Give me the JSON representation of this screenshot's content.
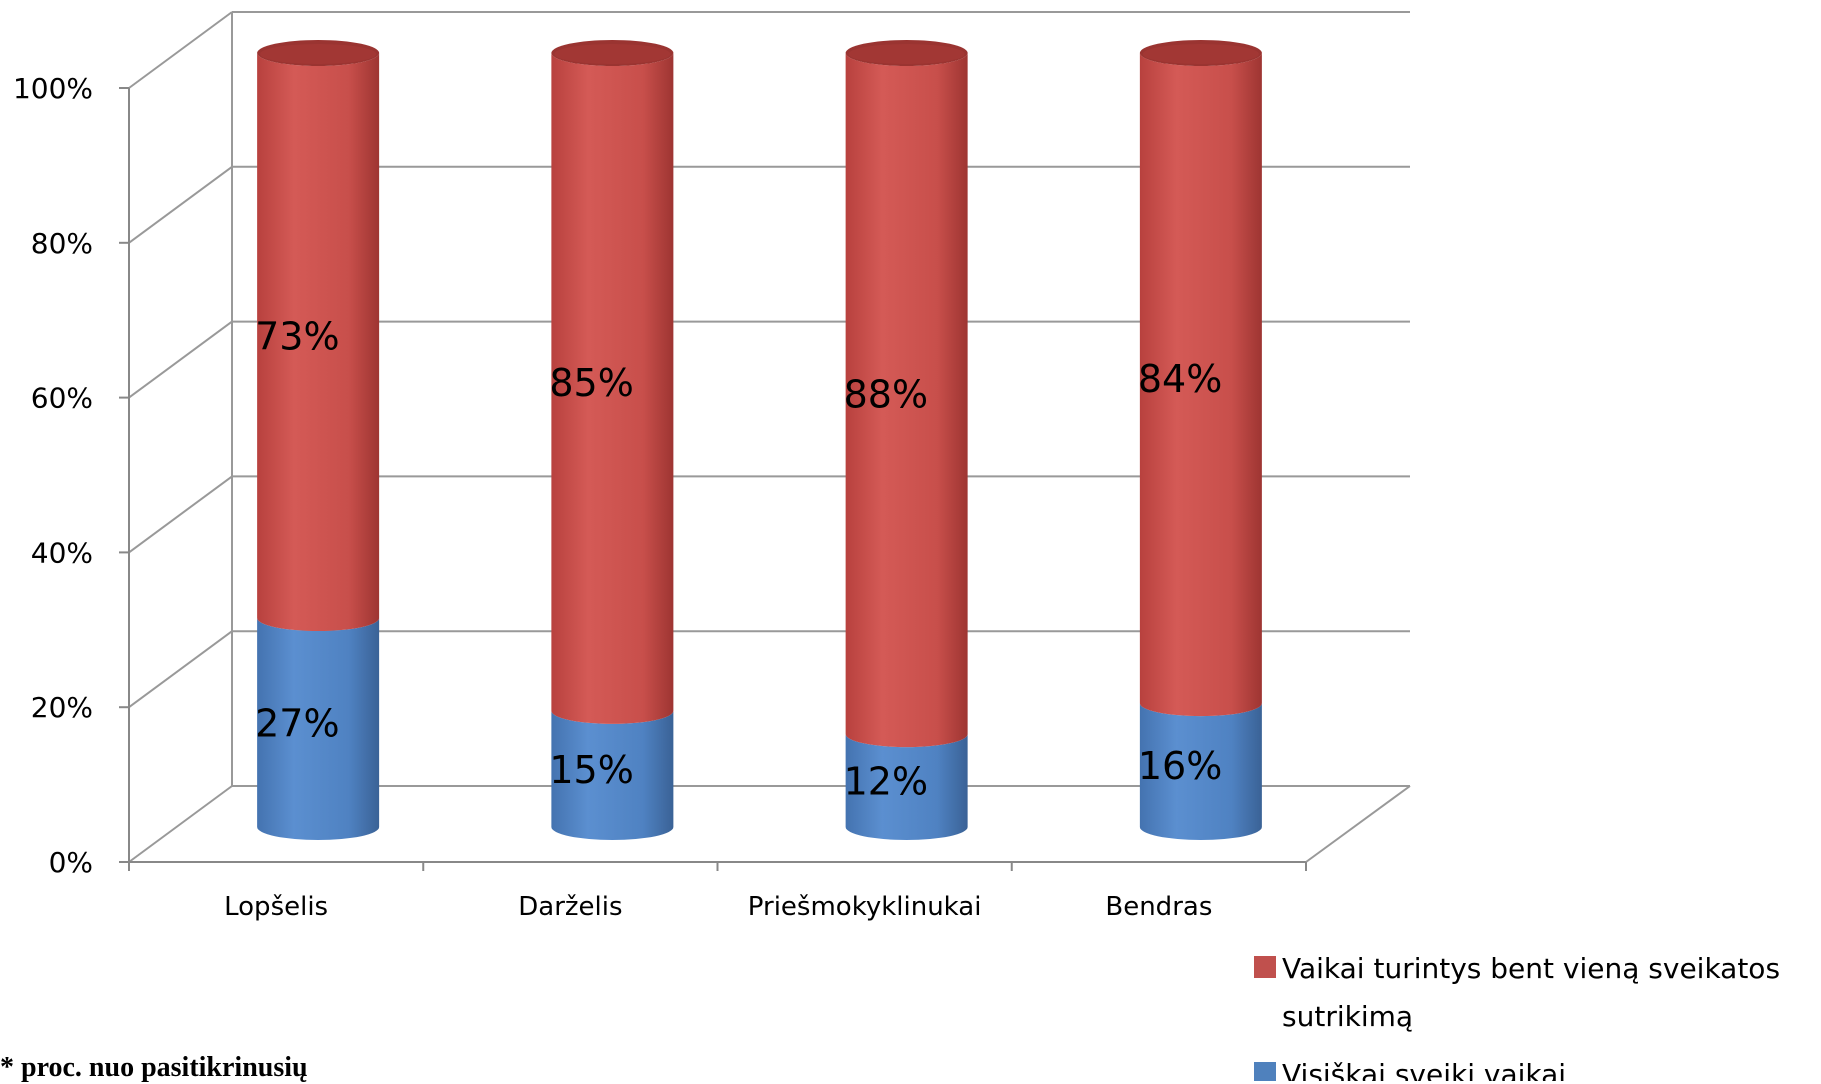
{
  "chart_data": {
    "type": "bar",
    "style": "3d-stacked-cylinder",
    "categories": [
      "Lopšelis",
      "Darželis",
      "Priešmokyklinukai",
      "Bendras"
    ],
    "series": [
      {
        "name": "Visiškai sveiki vaikai",
        "values": [
          27,
          15,
          12,
          16
        ],
        "labels": [
          "27%",
          "15%",
          "12%",
          "16%"
        ],
        "color": "#4f81bd"
      },
      {
        "name": "Vaikai turintys bent vieną sveikatos sutrikimą",
        "legend_lines": [
          "Vaikai turintys bent vieną sveikatos",
          "sutrikimą"
        ],
        "values": [
          73,
          85,
          88,
          84
        ],
        "labels": [
          "73%",
          "85%",
          "88%",
          "84%"
        ],
        "color": "#c0504d"
      }
    ],
    "yticks": [
      "0%",
      "20%",
      "40%",
      "60%",
      "80%",
      "100%"
    ],
    "ylim": [
      0,
      100
    ],
    "grid": true,
    "legend_position": "bottom-right"
  },
  "footnote": "* proc. nuo pasitikrinusių"
}
